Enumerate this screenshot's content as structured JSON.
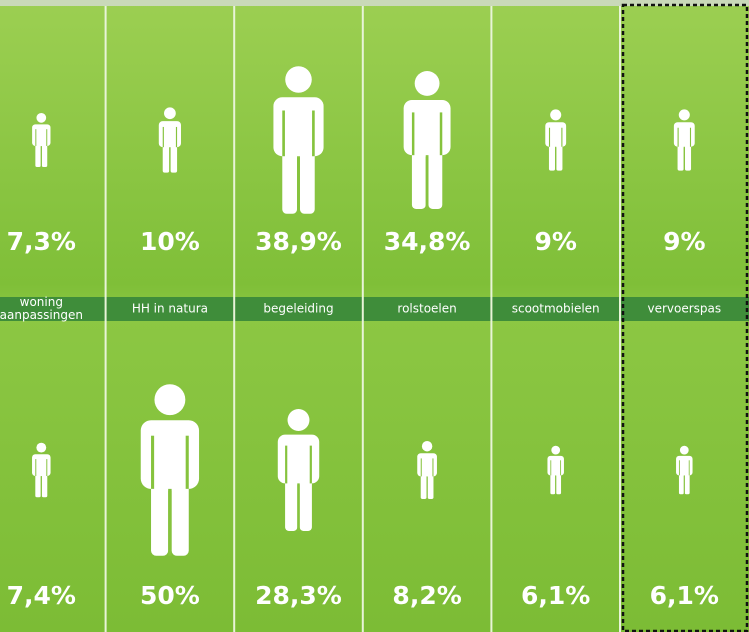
{
  "chart_data": {
    "type": "pictogram",
    "categories": [
      "woning aanpassingen",
      "HH in natura",
      "begeleiding",
      "rolstoelen",
      "scootmobielen",
      "vervoerspas"
    ],
    "color": "#ffffff",
    "series": [
      {
        "values": [
          7.3,
          10,
          38.9,
          34.8,
          9,
          9
        ],
        "value_labels": [
          "7,3%",
          "10%",
          "38,9%",
          "34,8%",
          "9%",
          "9%"
        ]
      },
      {
        "values": [
          7.4,
          50,
          28.3,
          8.2,
          6.1,
          6.1
        ],
        "value_labels": [
          "7,4%",
          "50%",
          "28,3%",
          "8,2%",
          "6,1%",
          "6,1%"
        ]
      }
    ]
  }
}
